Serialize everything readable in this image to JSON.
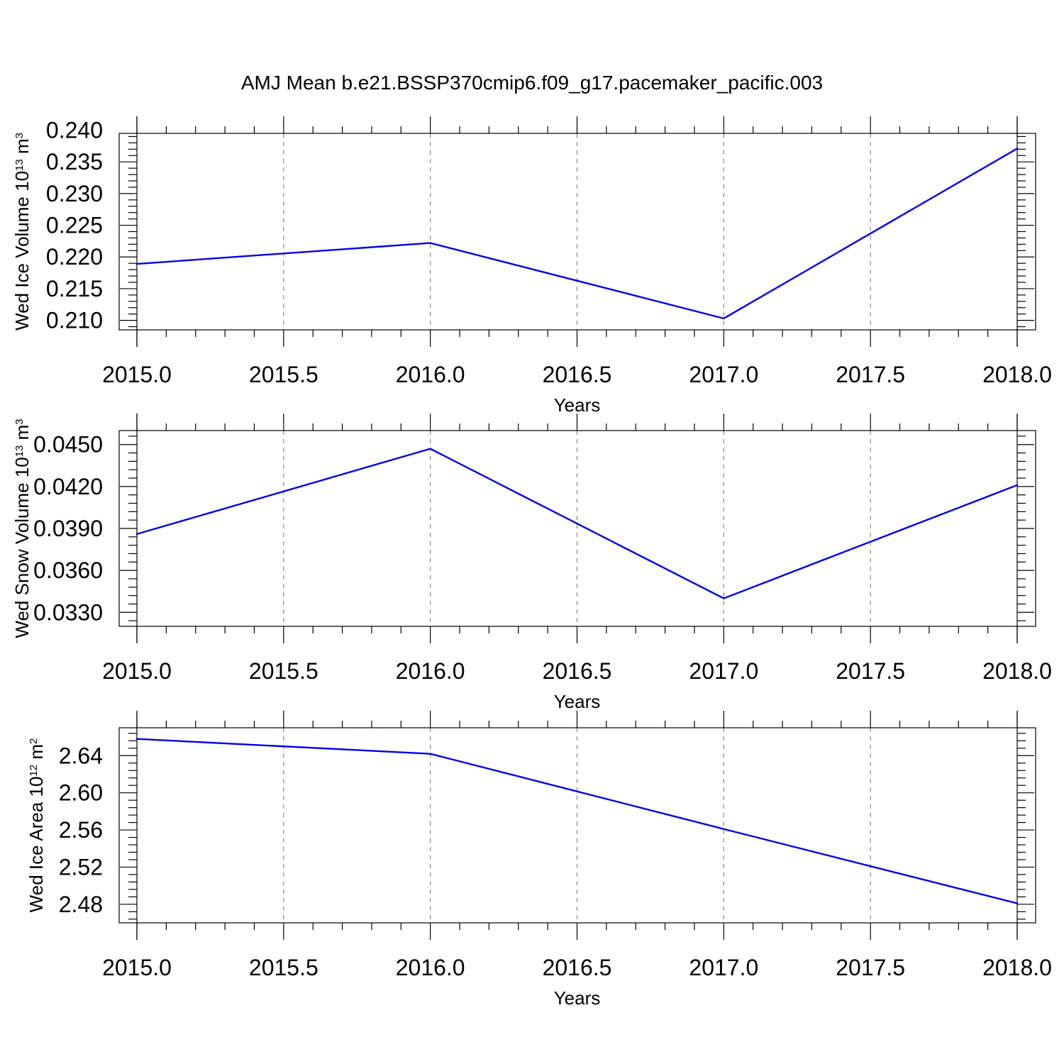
{
  "title": "AMJ Mean b.e21.BSSP370cmip6.f09_g17.pacemaker_pacific.003",
  "colors": {
    "series": "#0000ee",
    "grid": "#888888",
    "axis": "#000000"
  },
  "chart_data": [
    {
      "type": "line",
      "xlabel": "Years",
      "ylabel": {
        "text": "Wed Ice Volume 10",
        "exp": "13",
        "unit": " m",
        "unit_exp": "3"
      },
      "x": [
        2015,
        2016,
        2017,
        2018
      ],
      "values": [
        0.2189,
        0.2222,
        0.2103,
        0.2371
      ],
      "xlim": [
        2015,
        2018
      ],
      "ylim": [
        0.2085,
        0.2395
      ],
      "xticks": [
        "2015.0",
        "2015.5",
        "2016.0",
        "2016.5",
        "2017.0",
        "2017.5",
        "2018.0"
      ],
      "yticks": [
        "0.210",
        "0.215",
        "0.220",
        "0.225",
        "0.230",
        "0.235",
        "0.240"
      ],
      "grid": "vertical dashed"
    },
    {
      "type": "line",
      "xlabel": "Years",
      "ylabel": {
        "text": "Wed Snow Volume 10",
        "exp": "13",
        "unit": " m",
        "unit_exp": "3"
      },
      "x": [
        2015,
        2016,
        2017,
        2018
      ],
      "values": [
        0.0386,
        0.0447,
        0.034,
        0.0421
      ],
      "xlim": [
        2015,
        2018
      ],
      "ylim": [
        0.032,
        0.046
      ],
      "xticks": [
        "2015.0",
        "2015.5",
        "2016.0",
        "2016.5",
        "2017.0",
        "2017.5",
        "2018.0"
      ],
      "yticks": [
        "0.0330",
        "0.0360",
        "0.0390",
        "0.0420",
        "0.0450"
      ],
      "grid": "vertical dashed"
    },
    {
      "type": "line",
      "xlabel": "Years",
      "ylabel": {
        "text": "Wed Ice Area 10",
        "exp": "12",
        "unit": " m",
        "unit_exp": "2"
      },
      "x": [
        2015,
        2016,
        2017,
        2018
      ],
      "values": [
        2.658,
        2.642,
        2.561,
        2.481
      ],
      "xlim": [
        2015,
        2018
      ],
      "ylim": [
        2.46,
        2.67
      ],
      "xticks": [
        "2015.0",
        "2015.5",
        "2016.0",
        "2016.5",
        "2017.0",
        "2017.5",
        "2018.0"
      ],
      "yticks": [
        "2.48",
        "2.52",
        "2.56",
        "2.60",
        "2.64"
      ],
      "grid": "vertical dashed"
    }
  ]
}
